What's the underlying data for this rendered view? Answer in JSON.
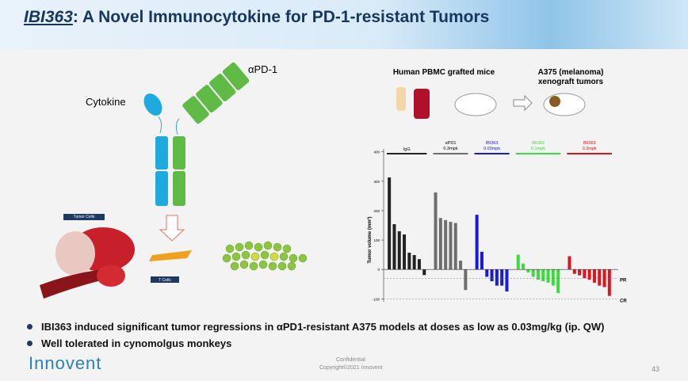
{
  "header": {
    "title_prefix": "IBI363",
    "title_rest": ": A Novel Immunocytokine for PD-1-resistant Tumors"
  },
  "diagram": {
    "antibody_label": "αPD-1",
    "cytokine_label": "Cytokine",
    "tumor_cells_label": "Tumor Cells",
    "t_cells_label": "T Cells",
    "model_left": "Human PBMC grafted mice",
    "model_right": "A375 (melanoma) xenograft tumors"
  },
  "chart_data": {
    "type": "bar",
    "y_label": "Tumor volume (mm³)",
    "ylim": [
      -110,
      410
    ],
    "yticks": [
      -100,
      0,
      100,
      200,
      300,
      400
    ],
    "ref_lines": [
      {
        "value": -30,
        "label": "PR"
      },
      {
        "value": -100,
        "label": "CR"
      }
    ],
    "series": [
      {
        "name": "IgG",
        "color": "#222222",
        "values": [
          313,
          154,
          130,
          119,
          57,
          49,
          35,
          -19
        ]
      },
      {
        "name": "αPD1",
        "dose": "0.3mpk",
        "color": "#6e6e6e",
        "values": [
          262,
          175,
          168,
          162,
          158,
          30,
          -70
        ]
      },
      {
        "name": "IBI363",
        "dose": "0.03mpk",
        "color": "#1a1adb",
        "values": [
          186,
          60,
          -25,
          -40,
          -55,
          -55,
          -75
        ]
      },
      {
        "name": "IBI362",
        "dose": "0.1mpk",
        "color": "#3ddc3d",
        "values": [
          50,
          20,
          -10,
          -25,
          -35,
          -40,
          -45,
          -55,
          -80
        ]
      },
      {
        "name": "IBI363",
        "dose": "0.3mpk",
        "color": "#e0141e",
        "values": [
          45,
          -15,
          -20,
          -30,
          -35,
          -45,
          -55,
          -60,
          -90
        ]
      }
    ]
  },
  "bullets": [
    "IBI363 induced significant tumor regressions in αPD1-resistant A375 models at doses as low as 0.03mg/kg (ip. QW)",
    "Well tolerated in cynomolgus monkeys"
  ],
  "footer": {
    "logo": "Innovent",
    "confidential": "Confidential",
    "copyright": "Copyright©2021 Innovent",
    "page": "43"
  }
}
